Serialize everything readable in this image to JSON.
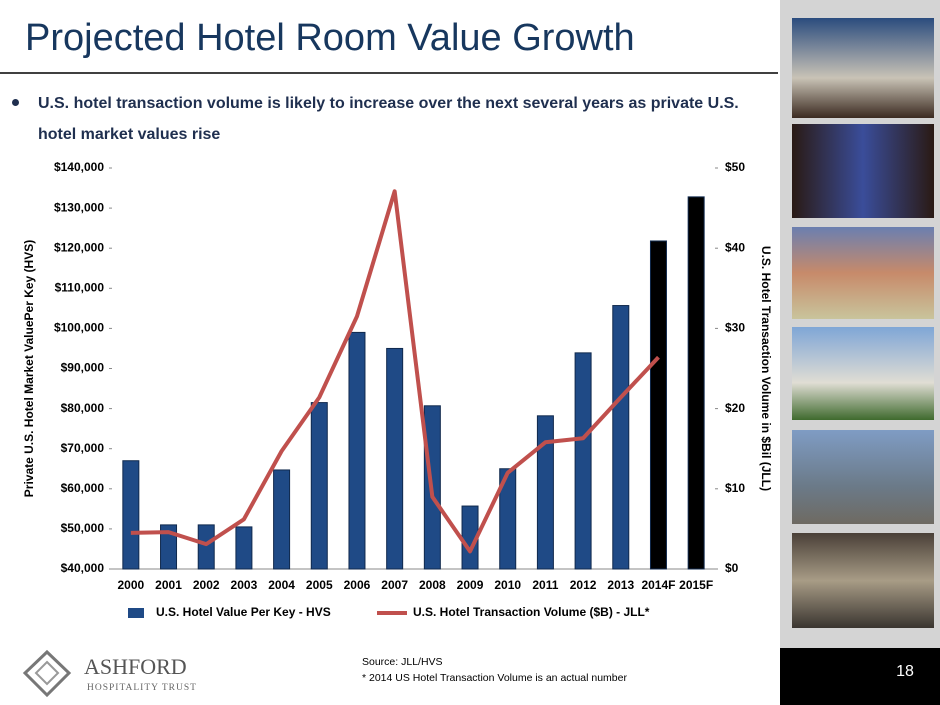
{
  "header": {
    "title": "Projected Hotel Room Value Growth"
  },
  "bullet": "U.S. hotel transaction volume is likely to increase over the next several years as private U.S. hotel market values rise",
  "chart_data": {
    "type": "combo",
    "categories": [
      "2000",
      "2001",
      "2002",
      "2003",
      "2004",
      "2005",
      "2006",
      "2007",
      "2008",
      "2009",
      "2010",
      "2011",
      "2012",
      "2013",
      "2014F",
      "2015F"
    ],
    "series": [
      {
        "name": "U.S. Hotel  Value Per Key - HVS",
        "type": "bar",
        "axis": "y",
        "color": "#1f4a86",
        "colors": [
          "#1f4a86",
          "#1f4a86",
          "#1f4a86",
          "#1f4a86",
          "#1f4a86",
          "#1f4a86",
          "#1f4a86",
          "#1f4a86",
          "#1f4a86",
          "#1f4a86",
          "#1f4a86",
          "#1f4a86",
          "#1f4a86",
          "#1f4a86",
          "#000000",
          "#000000"
        ],
        "values": [
          67000,
          51000,
          51000,
          50500,
          64700,
          81500,
          99000,
          95000,
          80700,
          55700,
          65000,
          78200,
          93900,
          105700,
          121800,
          132800
        ]
      },
      {
        "name": "U.S. Hotel Transaction Volume ($B) - JLL*",
        "type": "line",
        "axis": "y2",
        "color": "#c0504d",
        "values": [
          4.5,
          4.6,
          3.1,
          6.2,
          14.7,
          21.4,
          31.5,
          47.1,
          9.0,
          2.2,
          12.0,
          15.8,
          16.3,
          21.4,
          26.4,
          null
        ]
      }
    ],
    "y_label": "Private U.S. Hotel Market ValuePer Key (HVS)",
    "y2_label": "U.S. Hotel Transaction Volume in $Bil (JLL)",
    "ylim": [
      40000,
      140000
    ],
    "yticks": [
      {
        "value": 40000,
        "label": "$40,000"
      },
      {
        "value": 50000,
        "label": "$50,000"
      },
      {
        "value": 60000,
        "label": "$60,000"
      },
      {
        "value": 70000,
        "label": "$70,000"
      },
      {
        "value": 80000,
        "label": "$80,000"
      },
      {
        "value": 90000,
        "label": "$90,000"
      },
      {
        "value": 100000,
        "label": "$100,000"
      },
      {
        "value": 110000,
        "label": "$110,000"
      },
      {
        "value": 120000,
        "label": "$120,000"
      },
      {
        "value": 130000,
        "label": "$130,000"
      },
      {
        "value": 140000,
        "label": "$140,000"
      }
    ],
    "y2lim": [
      0,
      50
    ],
    "y2ticks": [
      {
        "value": 0,
        "label": "$0"
      },
      {
        "value": 10,
        "label": "$10"
      },
      {
        "value": 20,
        "label": "$20"
      },
      {
        "value": 30,
        "label": "$30"
      },
      {
        "value": 40,
        "label": "$40"
      },
      {
        "value": 50,
        "label": "$50"
      }
    ],
    "legend": "bottom"
  },
  "logo": {
    "name": "ASHFORD",
    "tagline": "HOSPITALITY TRUST"
  },
  "footer": {
    "source": "Source:  JLL/HVS",
    "note": "*  2014 US Hotel Transaction Volume is an actual number",
    "page_number": "18"
  }
}
